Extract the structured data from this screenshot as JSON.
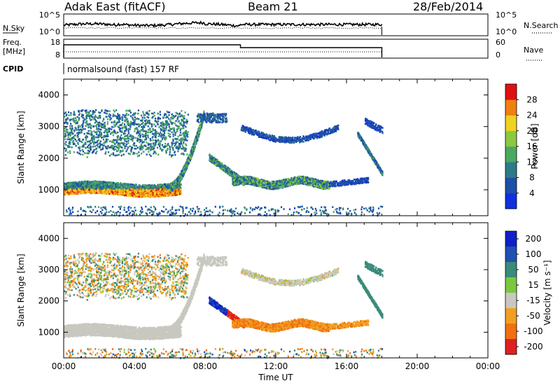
{
  "header": {
    "station": "Adak East (fitACF)",
    "beam": "Beam 21",
    "date": "28/Feb/2014"
  },
  "mini_panels": {
    "nsky_label": "N.Sky",
    "nsky_ticks": [
      "10^5",
      "10^0"
    ],
    "nsearch_label": "N.Search",
    "nsearch_ticks": [
      "10^5",
      "10^0"
    ],
    "freq_label": "Freq.",
    "freq_unit": "[MHz]",
    "freq_ticks": [
      "18",
      "8"
    ],
    "nave_label": "Nave",
    "nave_ticks": [
      "60",
      "0"
    ],
    "cpid_label": "CPID",
    "cpid_text": "normalsound (fast) 157 RF"
  },
  "chart_data": [
    {
      "type": "heatmap",
      "name": "power",
      "ylabel": "Slant Range [km]",
      "yticks": [
        1000,
        2000,
        3000,
        4000
      ],
      "ylim": [
        180,
        4500
      ],
      "xlim": [
        0,
        24
      ],
      "colorbar_label": "Power [dB]",
      "colorbar_ticks": [
        4,
        8,
        12,
        16,
        20,
        24,
        28
      ],
      "colorbar_range": [
        0,
        32
      ],
      "colorbar_colors": [
        "#1030e0",
        "#1e4fa8",
        "#2e7a88",
        "#4aa860",
        "#8cc840",
        "#f0d020",
        "#f08010",
        "#e01010"
      ]
    },
    {
      "type": "heatmap",
      "name": "velocity",
      "ylabel": "Slant Range [km]",
      "yticks": [
        1000,
        2000,
        3000,
        4000
      ],
      "ylim": [
        180,
        4500
      ],
      "xlim": [
        0,
        24
      ],
      "colorbar_label": "Velocity [m s⁻¹]",
      "colorbar_ticks": [
        "200",
        "100",
        "50",
        "15",
        "-15",
        "-50",
        "-100",
        "-200"
      ],
      "colorbar_colors": [
        "#1020c8",
        "#2050b0",
        "#3a8a7a",
        "#7ac840",
        "#c8c8c0",
        "#f0a020",
        "#f07010",
        "#e02020"
      ],
      "xlabel": "Time UT",
      "xticks": [
        "00:00",
        "04:00",
        "08:00",
        "12:00",
        "16:00",
        "20:00",
        "00:00"
      ]
    }
  ]
}
